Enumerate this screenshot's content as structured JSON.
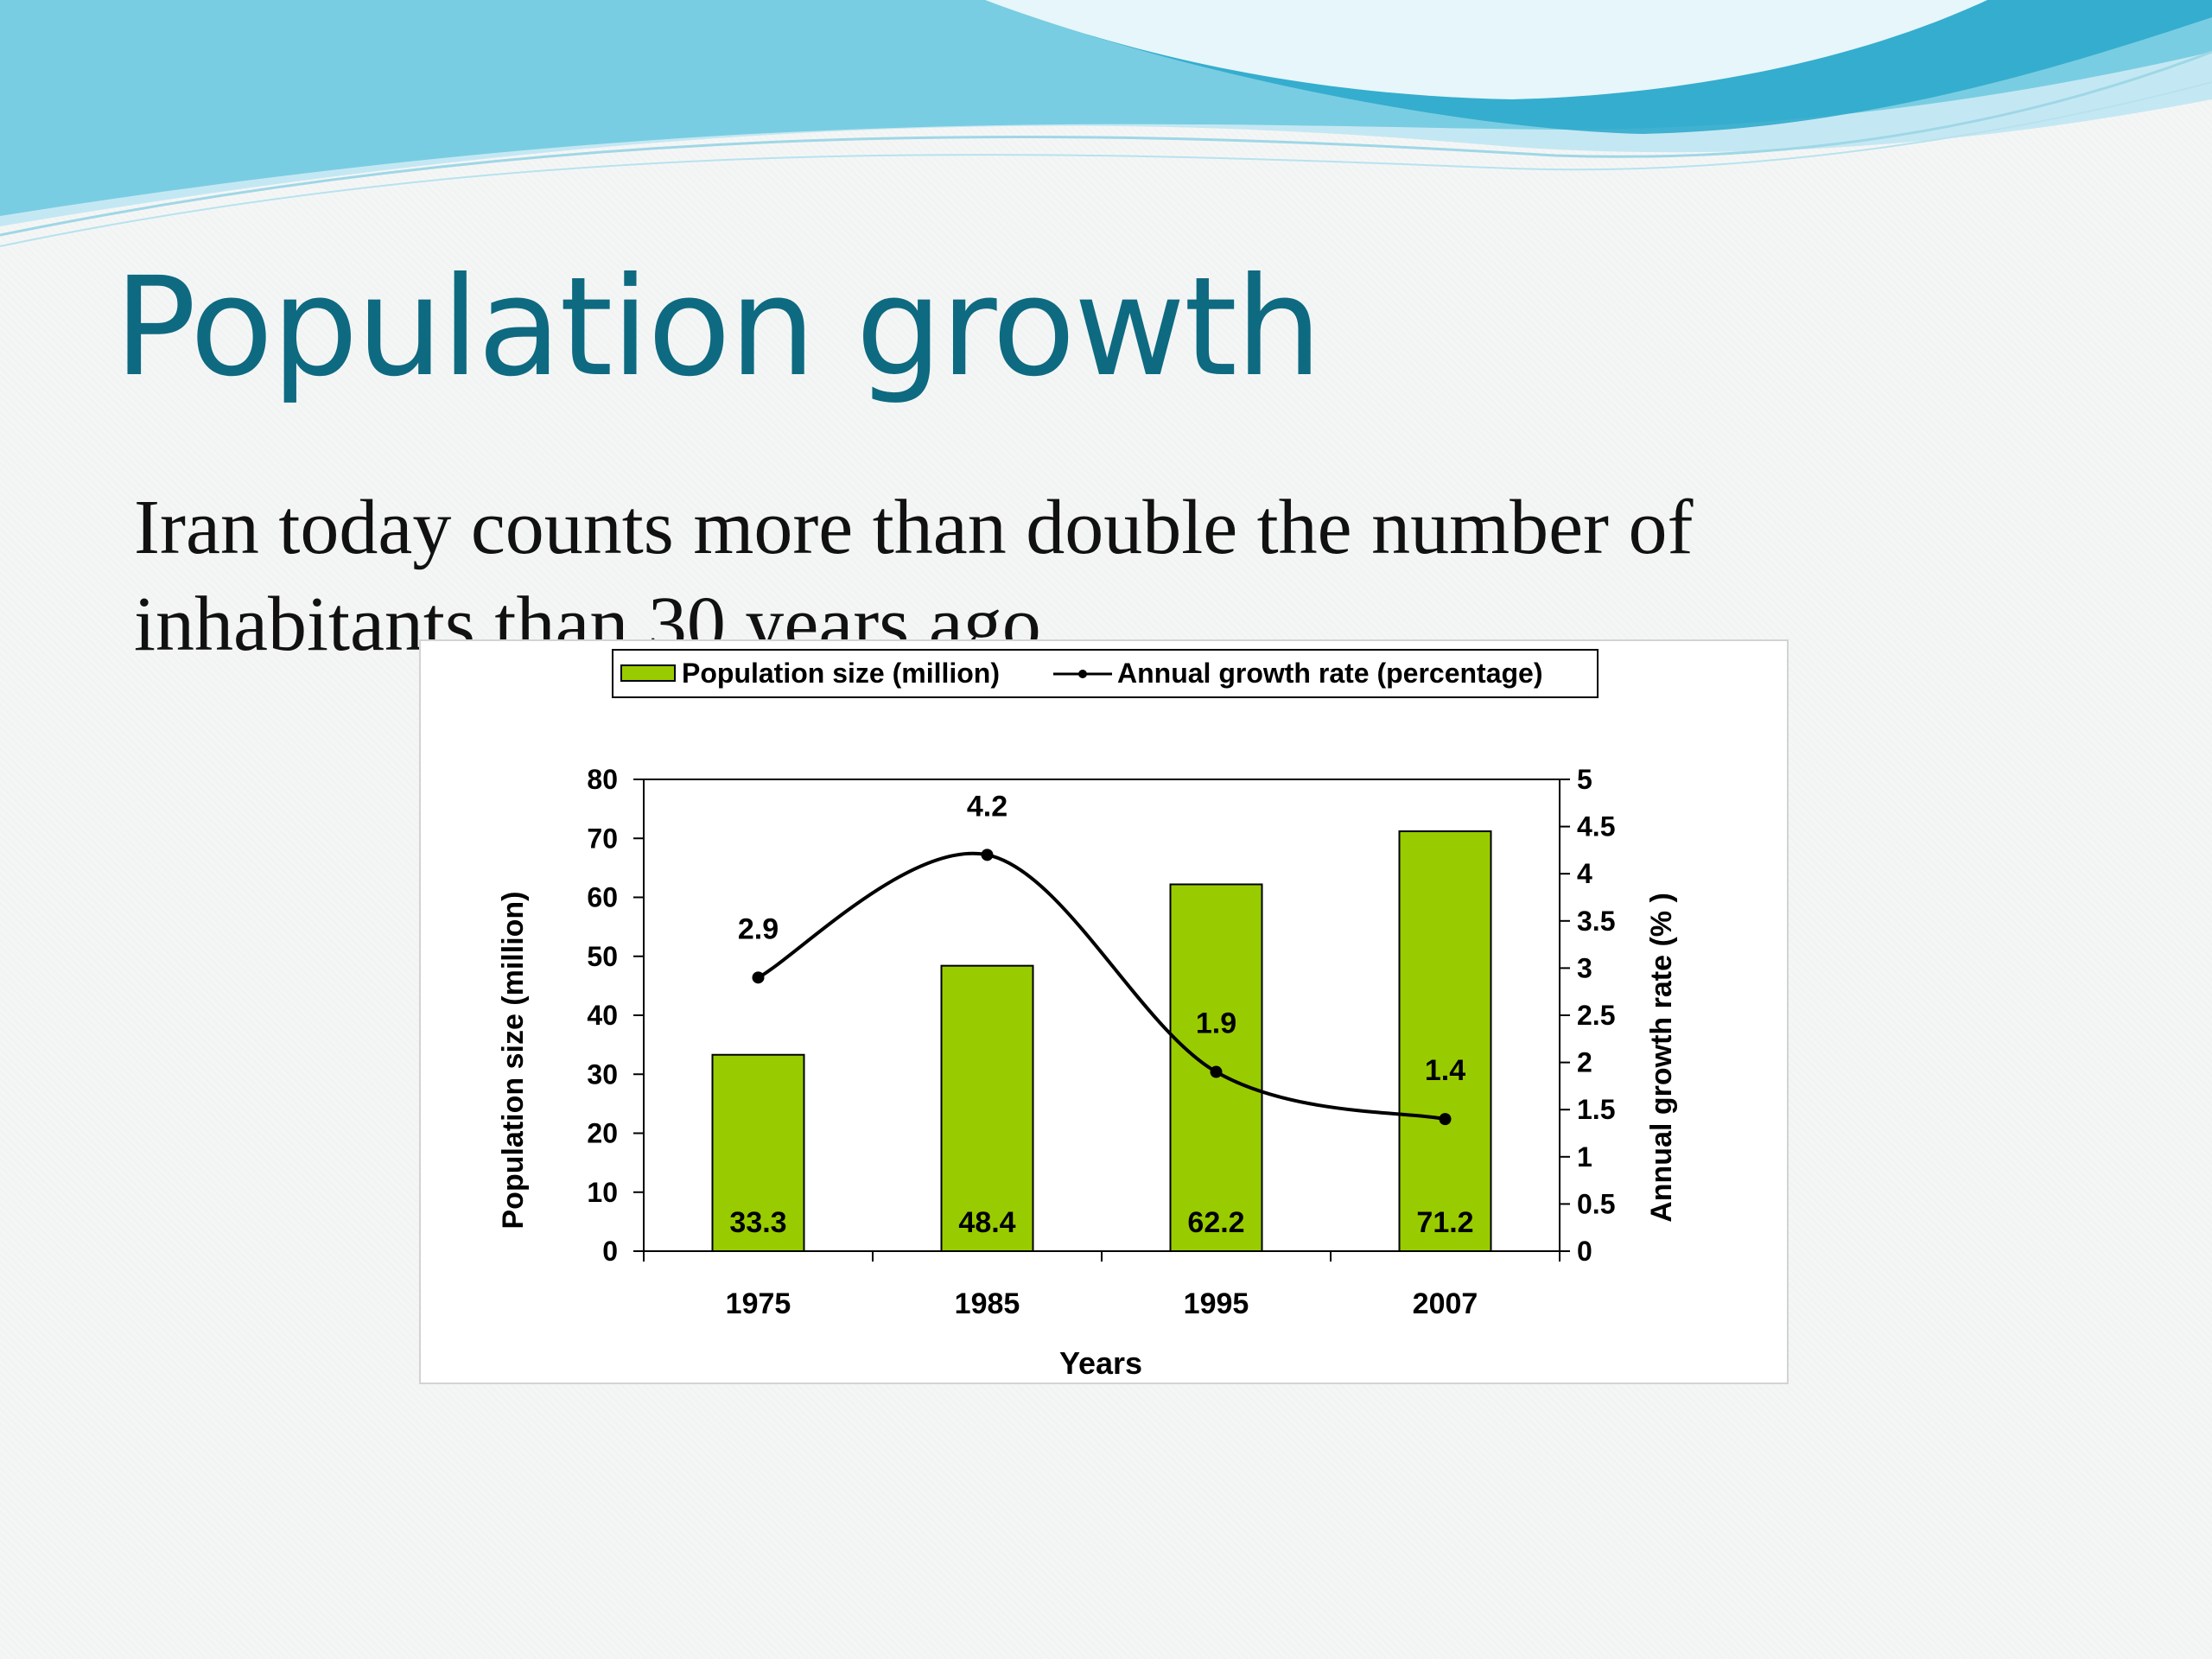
{
  "slide": {
    "title": "Population growth",
    "body": "Iran today counts more than double the number of inhabitants than 30 years ago"
  },
  "colors": {
    "title": "#0e6a80",
    "bar_fill": "#99cc00",
    "line": "#000000",
    "wave_light": "#bfe7f3",
    "wave_mid": "#6ccbe0",
    "wave_dark": "#1d9ec4"
  },
  "chart_data": {
    "type": "bar",
    "categories": [
      "1975",
      "1985",
      "1995",
      "2007"
    ],
    "series": [
      {
        "name": "Population size (million)",
        "type": "bar",
        "axis": "left",
        "values": [
          33.3,
          48.4,
          62.2,
          71.2
        ],
        "labels": [
          "33.3",
          "48.4",
          "62.2",
          "71.2"
        ]
      },
      {
        "name": "Annual growth rate (percentage)",
        "type": "line",
        "axis": "right",
        "smooth": true,
        "values": [
          2.9,
          4.2,
          1.9,
          1.4
        ],
        "labels": [
          "2.9",
          "4.2",
          "1.9",
          "1.4"
        ]
      }
    ],
    "xlabel": "Years",
    "ylabel": "Population size (million)",
    "y2label": "Annual growth rate (% )",
    "ylim": [
      0,
      80
    ],
    "yticks": [
      "0",
      "10",
      "20",
      "30",
      "40",
      "50",
      "60",
      "70",
      "80"
    ],
    "y2lim": [
      0,
      5
    ],
    "y2ticks": [
      "0",
      "0.5",
      "1",
      "1.5",
      "2",
      "2.5",
      "3",
      "3.5",
      "4",
      "4.5",
      "5"
    ],
    "legend": "top",
    "grid": false
  }
}
